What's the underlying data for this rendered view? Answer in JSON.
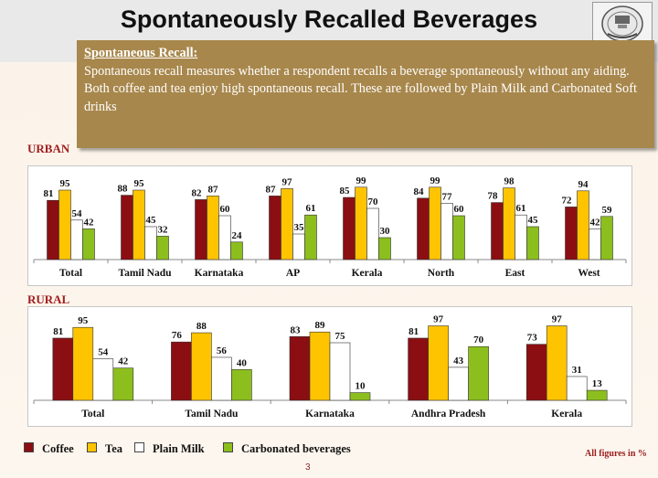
{
  "title": "Spontaneously Recalled Beverages",
  "info": {
    "heading": "Spontaneous Recall:",
    "line1": "Spontaneous recall measures whether a respondent recalls a beverage spontaneously without any aiding.",
    "line2": "Both coffee and tea enjoy high spontaneous recall. These are followed by Plain Milk and Carbonated Soft drinks"
  },
  "sections": {
    "urban": "URBAN",
    "rural": "RURAL"
  },
  "legend": [
    "Coffee",
    "Tea",
    "Plain Milk",
    "Carbonated beverages"
  ],
  "note": "All figures in %",
  "page_number": "3",
  "colors": {
    "coffee": "#8b0e12",
    "tea": "#ffc400",
    "plain_milk": "#ffffff",
    "carbonated": "#8cbf1e"
  },
  "chart_data": [
    {
      "type": "bar",
      "id": "urban",
      "categories": [
        "Total",
        "Tamil Nadu",
        "Karnataka",
        "AP",
        "Kerala",
        "North",
        "East",
        "West"
      ],
      "series": [
        {
          "name": "Coffee",
          "values": [
            81,
            88,
            82,
            87,
            85,
            84,
            78,
            72
          ]
        },
        {
          "name": "Tea",
          "values": [
            95,
            95,
            87,
            97,
            99,
            99,
            98,
            94
          ]
        },
        {
          "name": "Plain Milk",
          "values": [
            54,
            45,
            60,
            35,
            70,
            77,
            61,
            42
          ]
        },
        {
          "name": "Carbonated beverages",
          "values": [
            42,
            32,
            24,
            61,
            30,
            60,
            45,
            59
          ]
        }
      ],
      "ylim": [
        0,
        100
      ],
      "grid": false
    },
    {
      "type": "bar",
      "id": "rural",
      "categories": [
        "Total",
        "Tamil Nadu",
        "Karnataka",
        "Andhra Pradesh",
        "Kerala"
      ],
      "series": [
        {
          "name": "Coffee",
          "values": [
            81,
            76,
            83,
            81,
            73
          ]
        },
        {
          "name": "Tea",
          "values": [
            95,
            88,
            89,
            97,
            97
          ]
        },
        {
          "name": "Plain Milk",
          "values": [
            54,
            56,
            75,
            43,
            31
          ]
        },
        {
          "name": "Carbonated beverages",
          "values": [
            42,
            40,
            10,
            70,
            13
          ]
        }
      ],
      "ylim": [
        0,
        100
      ],
      "grid": false
    }
  ]
}
